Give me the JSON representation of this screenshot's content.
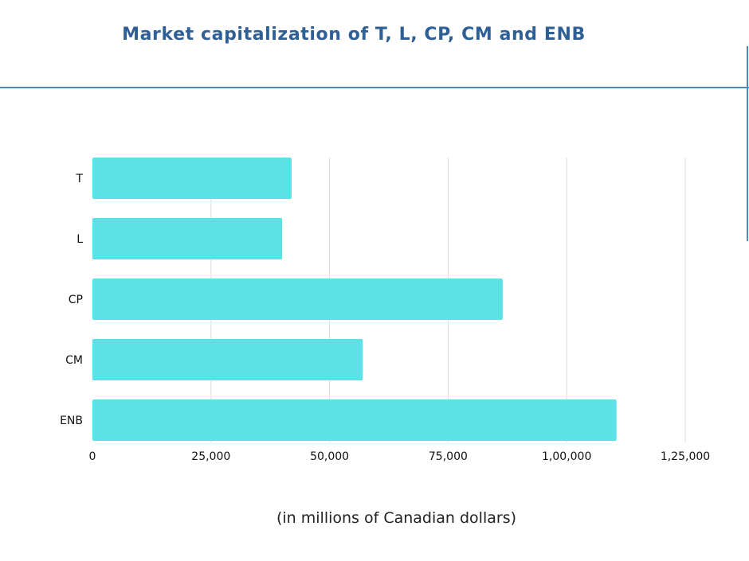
{
  "chart_data": {
    "type": "bar",
    "orientation": "horizontal",
    "title": "Market capitalization of T, L, CP, CM and ENB",
    "xlabel": "(in millions of Canadian dollars)",
    "ylabel": "",
    "categories": [
      "T",
      "L",
      "CP",
      "CM",
      "ENB"
    ],
    "values": [
      42000,
      40000,
      86500,
      57000,
      110500
    ],
    "xlim": [
      0,
      125000
    ],
    "xticks": [
      0,
      25000,
      50000,
      75000,
      100000,
      125000
    ],
    "xtick_labels": [
      "0",
      "25,000",
      "50,000",
      "75,000",
      "1,00,000",
      "1,25,000"
    ],
    "grid": true,
    "bar_color": "#5ce1e6",
    "grid_color": "#dddddd"
  }
}
